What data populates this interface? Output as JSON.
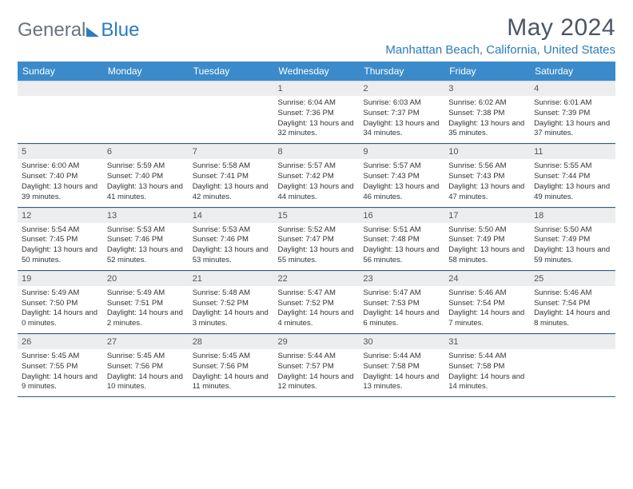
{
  "logo": {
    "text1": "General",
    "text2": "Blue"
  },
  "title": "May 2024",
  "location": "Manhattan Beach, California, United States",
  "colors": {
    "header_bg": "#3b8bca",
    "header_text": "#ffffff",
    "daynum_bg": "#ebedef",
    "row_border": "#2b5b8a",
    "accent": "#2b7cc0",
    "text": "#333333",
    "title_text": "#4b5563"
  },
  "fonts": {
    "title_size": 30,
    "location_size": 15,
    "dayhead_size": 12,
    "body_size": 9.5
  },
  "day_headers": [
    "Sunday",
    "Monday",
    "Tuesday",
    "Wednesday",
    "Thursday",
    "Friday",
    "Saturday"
  ],
  "weeks": [
    [
      null,
      null,
      null,
      {
        "n": "1",
        "sr": "6:04 AM",
        "ss": "7:36 PM",
        "dl": "13 hours and 32 minutes."
      },
      {
        "n": "2",
        "sr": "6:03 AM",
        "ss": "7:37 PM",
        "dl": "13 hours and 34 minutes."
      },
      {
        "n": "3",
        "sr": "6:02 AM",
        "ss": "7:38 PM",
        "dl": "13 hours and 35 minutes."
      },
      {
        "n": "4",
        "sr": "6:01 AM",
        "ss": "7:39 PM",
        "dl": "13 hours and 37 minutes."
      }
    ],
    [
      {
        "n": "5",
        "sr": "6:00 AM",
        "ss": "7:40 PM",
        "dl": "13 hours and 39 minutes."
      },
      {
        "n": "6",
        "sr": "5:59 AM",
        "ss": "7:40 PM",
        "dl": "13 hours and 41 minutes."
      },
      {
        "n": "7",
        "sr": "5:58 AM",
        "ss": "7:41 PM",
        "dl": "13 hours and 42 minutes."
      },
      {
        "n": "8",
        "sr": "5:57 AM",
        "ss": "7:42 PM",
        "dl": "13 hours and 44 minutes."
      },
      {
        "n": "9",
        "sr": "5:57 AM",
        "ss": "7:43 PM",
        "dl": "13 hours and 46 minutes."
      },
      {
        "n": "10",
        "sr": "5:56 AM",
        "ss": "7:43 PM",
        "dl": "13 hours and 47 minutes."
      },
      {
        "n": "11",
        "sr": "5:55 AM",
        "ss": "7:44 PM",
        "dl": "13 hours and 49 minutes."
      }
    ],
    [
      {
        "n": "12",
        "sr": "5:54 AM",
        "ss": "7:45 PM",
        "dl": "13 hours and 50 minutes."
      },
      {
        "n": "13",
        "sr": "5:53 AM",
        "ss": "7:46 PM",
        "dl": "13 hours and 52 minutes."
      },
      {
        "n": "14",
        "sr": "5:53 AM",
        "ss": "7:46 PM",
        "dl": "13 hours and 53 minutes."
      },
      {
        "n": "15",
        "sr": "5:52 AM",
        "ss": "7:47 PM",
        "dl": "13 hours and 55 minutes."
      },
      {
        "n": "16",
        "sr": "5:51 AM",
        "ss": "7:48 PM",
        "dl": "13 hours and 56 minutes."
      },
      {
        "n": "17",
        "sr": "5:50 AM",
        "ss": "7:49 PM",
        "dl": "13 hours and 58 minutes."
      },
      {
        "n": "18",
        "sr": "5:50 AM",
        "ss": "7:49 PM",
        "dl": "13 hours and 59 minutes."
      }
    ],
    [
      {
        "n": "19",
        "sr": "5:49 AM",
        "ss": "7:50 PM",
        "dl": "14 hours and 0 minutes."
      },
      {
        "n": "20",
        "sr": "5:49 AM",
        "ss": "7:51 PM",
        "dl": "14 hours and 2 minutes."
      },
      {
        "n": "21",
        "sr": "5:48 AM",
        "ss": "7:52 PM",
        "dl": "14 hours and 3 minutes."
      },
      {
        "n": "22",
        "sr": "5:47 AM",
        "ss": "7:52 PM",
        "dl": "14 hours and 4 minutes."
      },
      {
        "n": "23",
        "sr": "5:47 AM",
        "ss": "7:53 PM",
        "dl": "14 hours and 6 minutes."
      },
      {
        "n": "24",
        "sr": "5:46 AM",
        "ss": "7:54 PM",
        "dl": "14 hours and 7 minutes."
      },
      {
        "n": "25",
        "sr": "5:46 AM",
        "ss": "7:54 PM",
        "dl": "14 hours and 8 minutes."
      }
    ],
    [
      {
        "n": "26",
        "sr": "5:45 AM",
        "ss": "7:55 PM",
        "dl": "14 hours and 9 minutes."
      },
      {
        "n": "27",
        "sr": "5:45 AM",
        "ss": "7:56 PM",
        "dl": "14 hours and 10 minutes."
      },
      {
        "n": "28",
        "sr": "5:45 AM",
        "ss": "7:56 PM",
        "dl": "14 hours and 11 minutes."
      },
      {
        "n": "29",
        "sr": "5:44 AM",
        "ss": "7:57 PM",
        "dl": "14 hours and 12 minutes."
      },
      {
        "n": "30",
        "sr": "5:44 AM",
        "ss": "7:58 PM",
        "dl": "14 hours and 13 minutes."
      },
      {
        "n": "31",
        "sr": "5:44 AM",
        "ss": "7:58 PM",
        "dl": "14 hours and 14 minutes."
      },
      null
    ]
  ],
  "labels": {
    "sunrise": "Sunrise:",
    "sunset": "Sunset:",
    "daylight": "Daylight:"
  }
}
